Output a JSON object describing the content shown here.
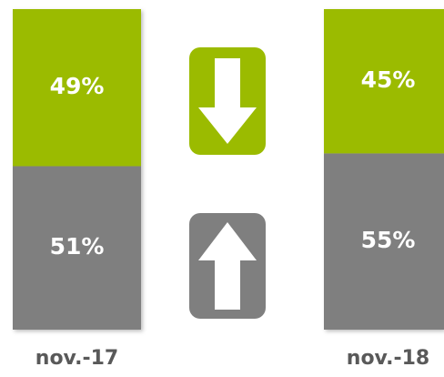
{
  "chart_data": {
    "type": "stacked_bar",
    "categories": [
      "nov.-17",
      "nov.-18"
    ],
    "series": [
      {
        "color": "#7f7f7f",
        "values": [
          51,
          55
        ],
        "value_labels": [
          "51%",
          "55%"
        ]
      },
      {
        "color": "#9bbb00",
        "values": [
          49,
          45
        ],
        "value_labels": [
          "49%",
          "45%"
        ]
      }
    ],
    "ylim": [
      0,
      100
    ]
  }
}
